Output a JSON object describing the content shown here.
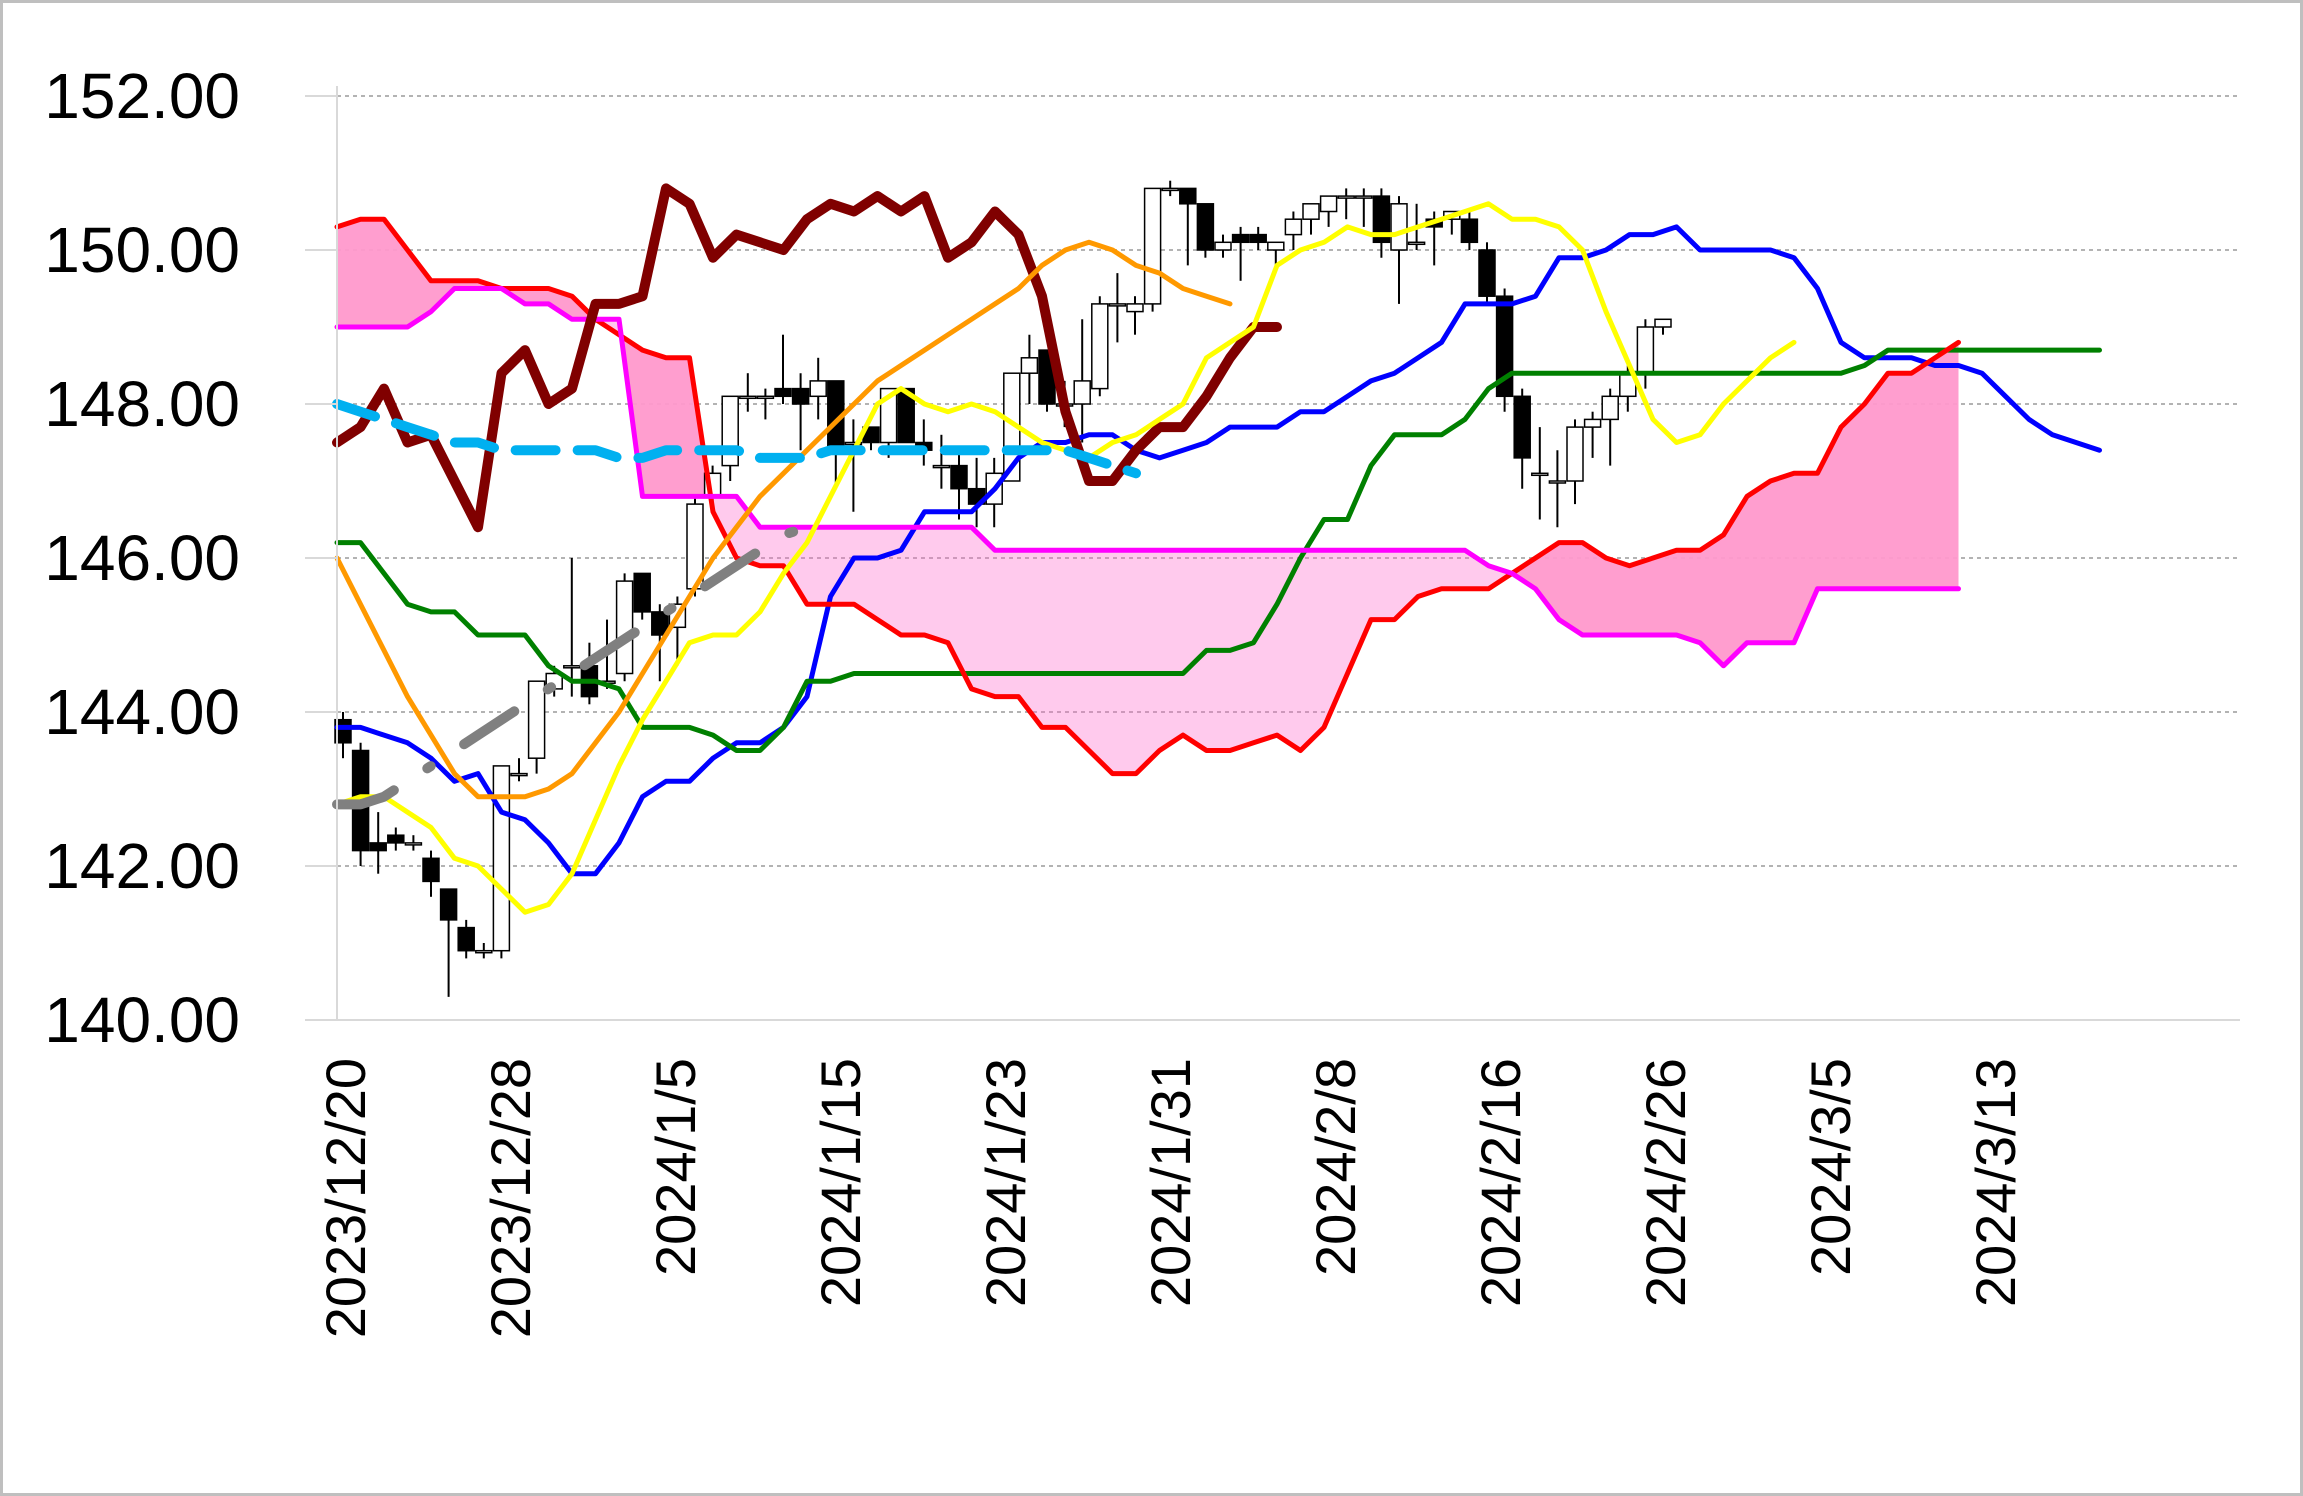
{
  "chart_data": {
    "type": "line",
    "title": "",
    "xlabel": "",
    "ylabel": "",
    "ylim": [
      140,
      152
    ],
    "y_ticks": [
      "140.00",
      "142.00",
      "144.00",
      "146.00",
      "148.00",
      "150.00",
      "152.00"
    ],
    "x_tick_labels": [
      "2023/12/20",
      "2023/12/28",
      "2024/1/5",
      "2024/1/15",
      "2024/1/23",
      "2024/1/31",
      "2024/2/8",
      "2024/2/16",
      "2024/2/26",
      "2024/3/5",
      "2024/3/13"
    ],
    "grid": true,
    "legend": "none",
    "colors": {
      "candle_down": "#000000",
      "candle_up": "#ffffff",
      "conversion_line": "#0000ff",
      "base_line": "#008000",
      "span_a": "#ff0000",
      "span_b": "#ff00ff",
      "lagging_span": "#800000",
      "ma_short": "#ffff00",
      "ma_mid": "#ff9900",
      "ma_long_dashed": "#00b0f0",
      "trend_dashed": "#808080",
      "cloud_bullish_fill": "#ff99cc",
      "cloud_bearish_fill": "#ff66cc"
    },
    "candles": [
      [
        143.9,
        144.0,
        143.4,
        143.6
      ],
      [
        143.5,
        143.6,
        142.0,
        142.2
      ],
      [
        142.3,
        142.7,
        141.9,
        142.2
      ],
      [
        142.4,
        142.5,
        142.2,
        142.3
      ],
      [
        142.3,
        142.4,
        142.2,
        142.3
      ],
      [
        142.1,
        142.2,
        141.6,
        141.8
      ],
      [
        141.7,
        141.7,
        140.3,
        141.3
      ],
      [
        141.2,
        141.3,
        140.8,
        140.9
      ],
      [
        140.9,
        141.0,
        140.8,
        140.9
      ],
      [
        140.9,
        143.3,
        140.8,
        143.3
      ],
      [
        143.2,
        143.4,
        143.1,
        143.2
      ],
      [
        143.4,
        144.4,
        143.2,
        144.4
      ],
      [
        144.3,
        144.6,
        144.2,
        144.5
      ],
      [
        144.6,
        146.0,
        144.2,
        144.6
      ],
      [
        144.6,
        144.9,
        144.1,
        144.2
      ],
      [
        144.4,
        145.2,
        144.3,
        144.4
      ],
      [
        144.5,
        145.8,
        144.4,
        145.7
      ],
      [
        145.8,
        145.8,
        145.2,
        145.3
      ],
      [
        145.3,
        145.4,
        144.4,
        145.0
      ],
      [
        145.1,
        145.5,
        144.6,
        145.4
      ],
      [
        145.6,
        146.8,
        145.5,
        146.7
      ],
      [
        146.8,
        147.2,
        146.7,
        147.1
      ],
      [
        147.2,
        148.1,
        147.0,
        148.1
      ],
      [
        148.1,
        148.4,
        147.9,
        148.1
      ],
      [
        148.1,
        148.2,
        147.8,
        148.1
      ],
      [
        148.2,
        148.9,
        148.0,
        148.1
      ],
      [
        148.2,
        148.4,
        147.4,
        148.0
      ],
      [
        148.1,
        148.6,
        147.8,
        148.3
      ],
      [
        148.3,
        148.3,
        146.9,
        147.4
      ],
      [
        147.5,
        147.8,
        146.6,
        147.5
      ],
      [
        147.7,
        147.7,
        147.4,
        147.5
      ],
      [
        147.5,
        148.2,
        147.3,
        148.2
      ],
      [
        148.2,
        148.2,
        147.5,
        147.5
      ],
      [
        147.5,
        147.8,
        147.2,
        147.4
      ],
      [
        147.2,
        147.6,
        146.9,
        147.2
      ],
      [
        147.2,
        147.4,
        146.5,
        146.9
      ],
      [
        146.9,
        147.3,
        146.4,
        146.7
      ],
      [
        146.7,
        147.3,
        146.4,
        147.1
      ],
      [
        147.0,
        148.4,
        147.0,
        148.4
      ],
      [
        148.4,
        148.9,
        148.0,
        148.6
      ],
      [
        148.7,
        148.7,
        147.9,
        148.0
      ],
      [
        148.0,
        148.3,
        147.7,
        148.0
      ],
      [
        148.0,
        149.1,
        147.5,
        148.3
      ],
      [
        148.2,
        149.4,
        148.1,
        149.3
      ],
      [
        149.3,
        149.7,
        148.8,
        149.3
      ],
      [
        149.2,
        149.4,
        148.9,
        149.3
      ],
      [
        149.3,
        150.8,
        149.2,
        150.8
      ],
      [
        150.8,
        150.9,
        150.7,
        150.8
      ],
      [
        150.8,
        150.8,
        149.8,
        150.6
      ],
      [
        150.6,
        150.6,
        149.9,
        150.0
      ],
      [
        150.0,
        150.2,
        149.9,
        150.1
      ],
      [
        150.2,
        150.3,
        149.6,
        150.1
      ],
      [
        150.2,
        150.3,
        150.0,
        150.1
      ],
      [
        150.0,
        150.1,
        149.8,
        150.1
      ],
      [
        150.2,
        150.5,
        150.0,
        150.4
      ],
      [
        150.4,
        150.6,
        150.2,
        150.6
      ],
      [
        150.5,
        150.7,
        150.3,
        150.7
      ],
      [
        150.7,
        150.8,
        150.4,
        150.7
      ],
      [
        150.7,
        150.8,
        150.3,
        150.7
      ],
      [
        150.7,
        150.8,
        149.9,
        150.1
      ],
      [
        150.0,
        150.7,
        149.3,
        150.6
      ],
      [
        150.1,
        150.6,
        150.0,
        150.1
      ],
      [
        150.4,
        150.5,
        149.8,
        150.3
      ],
      [
        150.4,
        150.5,
        150.2,
        150.5
      ],
      [
        150.4,
        150.5,
        150.0,
        150.1
      ],
      [
        150.0,
        150.1,
        149.3,
        149.4
      ],
      [
        149.4,
        149.5,
        147.9,
        148.1
      ],
      [
        148.1,
        148.2,
        146.9,
        147.3
      ],
      [
        147.1,
        147.7,
        146.5,
        147.1
      ],
      [
        147.0,
        147.4,
        146.4,
        147.0
      ],
      [
        147.0,
        147.8,
        146.7,
        147.7
      ],
      [
        147.7,
        147.9,
        147.3,
        147.8
      ],
      [
        147.8,
        148.2,
        147.2,
        148.1
      ],
      [
        148.1,
        148.5,
        147.9,
        148.4
      ],
      [
        148.4,
        149.1,
        148.2,
        149.0
      ],
      [
        149.0,
        149.1,
        148.9,
        149.1
      ]
    ],
    "series": [
      {
        "role": "tenkan",
        "color": "#0000ff",
        "width": 5,
        "values": [
          143.8,
          143.8,
          143.7,
          143.6,
          143.4,
          143.1,
          143.2,
          142.7,
          142.6,
          142.3,
          141.9,
          141.9,
          142.3,
          142.9,
          143.1,
          143.1,
          143.4,
          143.6,
          143.6,
          143.8,
          144.2,
          145.5,
          146.0,
          146.0,
          146.1,
          146.6,
          146.6,
          146.6,
          146.9,
          147.3,
          147.5,
          147.5,
          147.6,
          147.6,
          147.4,
          147.3,
          147.4,
          147.5,
          147.7,
          147.7,
          147.7,
          147.9,
          147.9,
          148.1,
          148.3,
          148.4,
          148.6,
          148.8,
          149.3,
          149.3,
          149.3,
          149.4,
          149.9,
          149.9,
          150.0,
          150.2,
          150.2,
          150.3,
          150.0,
          150.0,
          150.0,
          150.0,
          149.9,
          149.5,
          148.8,
          148.6,
          148.6,
          148.6,
          148.5,
          148.5,
          148.4,
          148.1,
          147.8,
          147.6,
          147.5,
          147.4
        ]
      },
      {
        "role": "kijun",
        "color": "#008000",
        "width": 5,
        "values": [
          146.2,
          146.2,
          145.8,
          145.4,
          145.3,
          145.3,
          145.0,
          145.0,
          145.0,
          144.6,
          144.4,
          144.4,
          144.3,
          143.8,
          143.8,
          143.8,
          143.7,
          143.5,
          143.5,
          143.8,
          144.4,
          144.4,
          144.5,
          144.5,
          144.5,
          144.5,
          144.5,
          144.5,
          144.5,
          144.5,
          144.5,
          144.5,
          144.5,
          144.5,
          144.5,
          144.5,
          144.5,
          144.8,
          144.8,
          144.9,
          145.4,
          146.0,
          146.5,
          146.5,
          147.2,
          147.6,
          147.6,
          147.6,
          147.8,
          148.2,
          148.4,
          148.4,
          148.4,
          148.4,
          148.4,
          148.4,
          148.4,
          148.4,
          148.4,
          148.4,
          148.4,
          148.4,
          148.4,
          148.4,
          148.4,
          148.5,
          148.7,
          148.7,
          148.7,
          148.7,
          148.7,
          148.7,
          148.7,
          148.7,
          148.7,
          148.7
        ]
      },
      {
        "role": "senkou_a",
        "color": "#ff0000",
        "width": 5,
        "values": [
          150.3,
          150.4,
          150.4,
          150.0,
          149.6,
          149.6,
          149.6,
          149.5,
          149.5,
          149.5,
          149.4,
          149.1,
          148.9,
          148.7,
          148.6,
          148.6,
          146.6,
          146.0,
          145.9,
          145.9,
          145.4,
          145.4,
          145.4,
          145.2,
          145.0,
          145.0,
          144.9,
          144.3,
          144.2,
          144.2,
          143.8,
          143.8,
          143.5,
          143.2,
          143.2,
          143.5,
          143.7,
          143.5,
          143.5,
          143.6,
          143.7,
          143.5,
          143.8,
          144.5,
          145.2,
          145.2,
          145.5,
          145.6,
          145.6,
          145.6,
          145.8,
          146.0,
          146.2,
          146.2,
          146.0,
          145.9,
          146.0,
          146.1,
          146.1,
          146.3,
          146.8,
          147.0,
          147.1,
          147.1,
          147.7,
          148.0,
          148.4,
          148.4,
          148.6,
          148.8
        ]
      },
      {
        "role": "senkou_b",
        "color": "#ff00ff",
        "width": 5,
        "values": [
          149.0,
          149.0,
          149.0,
          149.0,
          149.2,
          149.5,
          149.5,
          149.5,
          149.3,
          149.3,
          149.1,
          149.1,
          149.1,
          146.8,
          146.8,
          146.8,
          146.8,
          146.8,
          146.4,
          146.4,
          146.4,
          146.4,
          146.4,
          146.4,
          146.4,
          146.4,
          146.4,
          146.4,
          146.1,
          146.1,
          146.1,
          146.1,
          146.1,
          146.1,
          146.1,
          146.1,
          146.1,
          146.1,
          146.1,
          146.1,
          146.1,
          146.1,
          146.1,
          146.1,
          146.1,
          146.1,
          146.1,
          146.1,
          146.1,
          145.9,
          145.8,
          145.6,
          145.2,
          145.0,
          145.0,
          145.0,
          145.0,
          145.0,
          144.9,
          144.6,
          144.9,
          144.9,
          144.9,
          145.6,
          145.6,
          145.6,
          145.6,
          145.6,
          145.6,
          145.6
        ]
      },
      {
        "role": "chikou",
        "color": "#800000",
        "width": 10,
        "values": [
          147.5,
          147.7,
          148.2,
          147.5,
          147.6,
          147.0,
          146.4,
          148.4,
          148.7,
          148.0,
          148.2,
          149.3,
          149.3,
          149.4,
          150.8,
          150.6,
          149.9,
          150.2,
          150.1,
          150.0,
          150.4,
          150.6,
          150.5,
          150.7,
          150.5,
          150.7,
          149.9,
          150.1,
          150.5,
          150.2,
          149.4,
          147.9,
          147.0,
          147.0,
          147.4,
          147.7,
          147.7,
          148.1,
          148.6,
          149.0,
          149.0
        ]
      },
      {
        "role": "ma_short",
        "color": "#ffff00",
        "width": 5,
        "values": [
          142.8,
          142.9,
          142.9,
          142.7,
          142.5,
          142.1,
          142.0,
          141.7,
          141.4,
          141.5,
          141.9,
          142.6,
          143.3,
          143.9,
          144.4,
          144.9,
          145.0,
          145.0,
          145.3,
          145.8,
          146.2,
          146.8,
          147.4,
          148.0,
          148.2,
          148.0,
          147.9,
          148.0,
          147.9,
          147.7,
          147.5,
          147.4,
          147.3,
          147.5,
          147.6,
          147.8,
          148.0,
          148.6,
          148.8,
          149.0,
          149.8,
          150.0,
          150.1,
          150.3,
          150.2,
          150.2,
          150.3,
          150.4,
          150.5,
          150.6,
          150.4,
          150.4,
          150.3,
          150.0,
          149.2,
          148.5,
          147.8,
          147.5,
          147.6,
          148.0,
          148.3,
          148.6,
          148.8
        ]
      },
      {
        "role": "ma_mid",
        "color": "#ff9900",
        "width": 5,
        "values": [
          146.0,
          145.4,
          144.8,
          144.2,
          143.7,
          143.2,
          142.9,
          142.9,
          142.9,
          143.0,
          143.2,
          143.6,
          144.0,
          144.5,
          145.0,
          145.5,
          146.0,
          146.4,
          146.8,
          147.1,
          147.4,
          147.7,
          148.0,
          148.3,
          148.5,
          148.7,
          148.9,
          149.1,
          149.3,
          149.5,
          149.8,
          150.0,
          150.1,
          150.0,
          149.8,
          149.7,
          149.5,
          149.4,
          149.3
        ]
      },
      {
        "role": "ma_long",
        "color": "#00b0f0",
        "width": 10,
        "dashed": true,
        "values": [
          148.0,
          147.9,
          147.8,
          147.7,
          147.6,
          147.5,
          147.5,
          147.4,
          147.4,
          147.4,
          147.4,
          147.4,
          147.3,
          147.3,
          147.4,
          147.4,
          147.4,
          147.4,
          147.3,
          147.3,
          147.3,
          147.4,
          147.4,
          147.4,
          147.4,
          147.4,
          147.4,
          147.4,
          147.4,
          147.4,
          147.4,
          147.4,
          147.3,
          147.2,
          147.1
        ]
      },
      {
        "role": "trend",
        "color": "#808080",
        "width": 10,
        "dashed": true,
        "values": [
          142.8,
          142.8,
          142.9,
          143.1,
          143.3,
          143.5,
          143.7,
          143.9,
          144.1,
          144.3,
          144.5,
          144.7,
          144.9,
          145.1,
          145.3,
          145.5,
          145.7,
          145.9,
          146.1,
          146.3,
          146.4,
          146.5
        ]
      }
    ]
  }
}
